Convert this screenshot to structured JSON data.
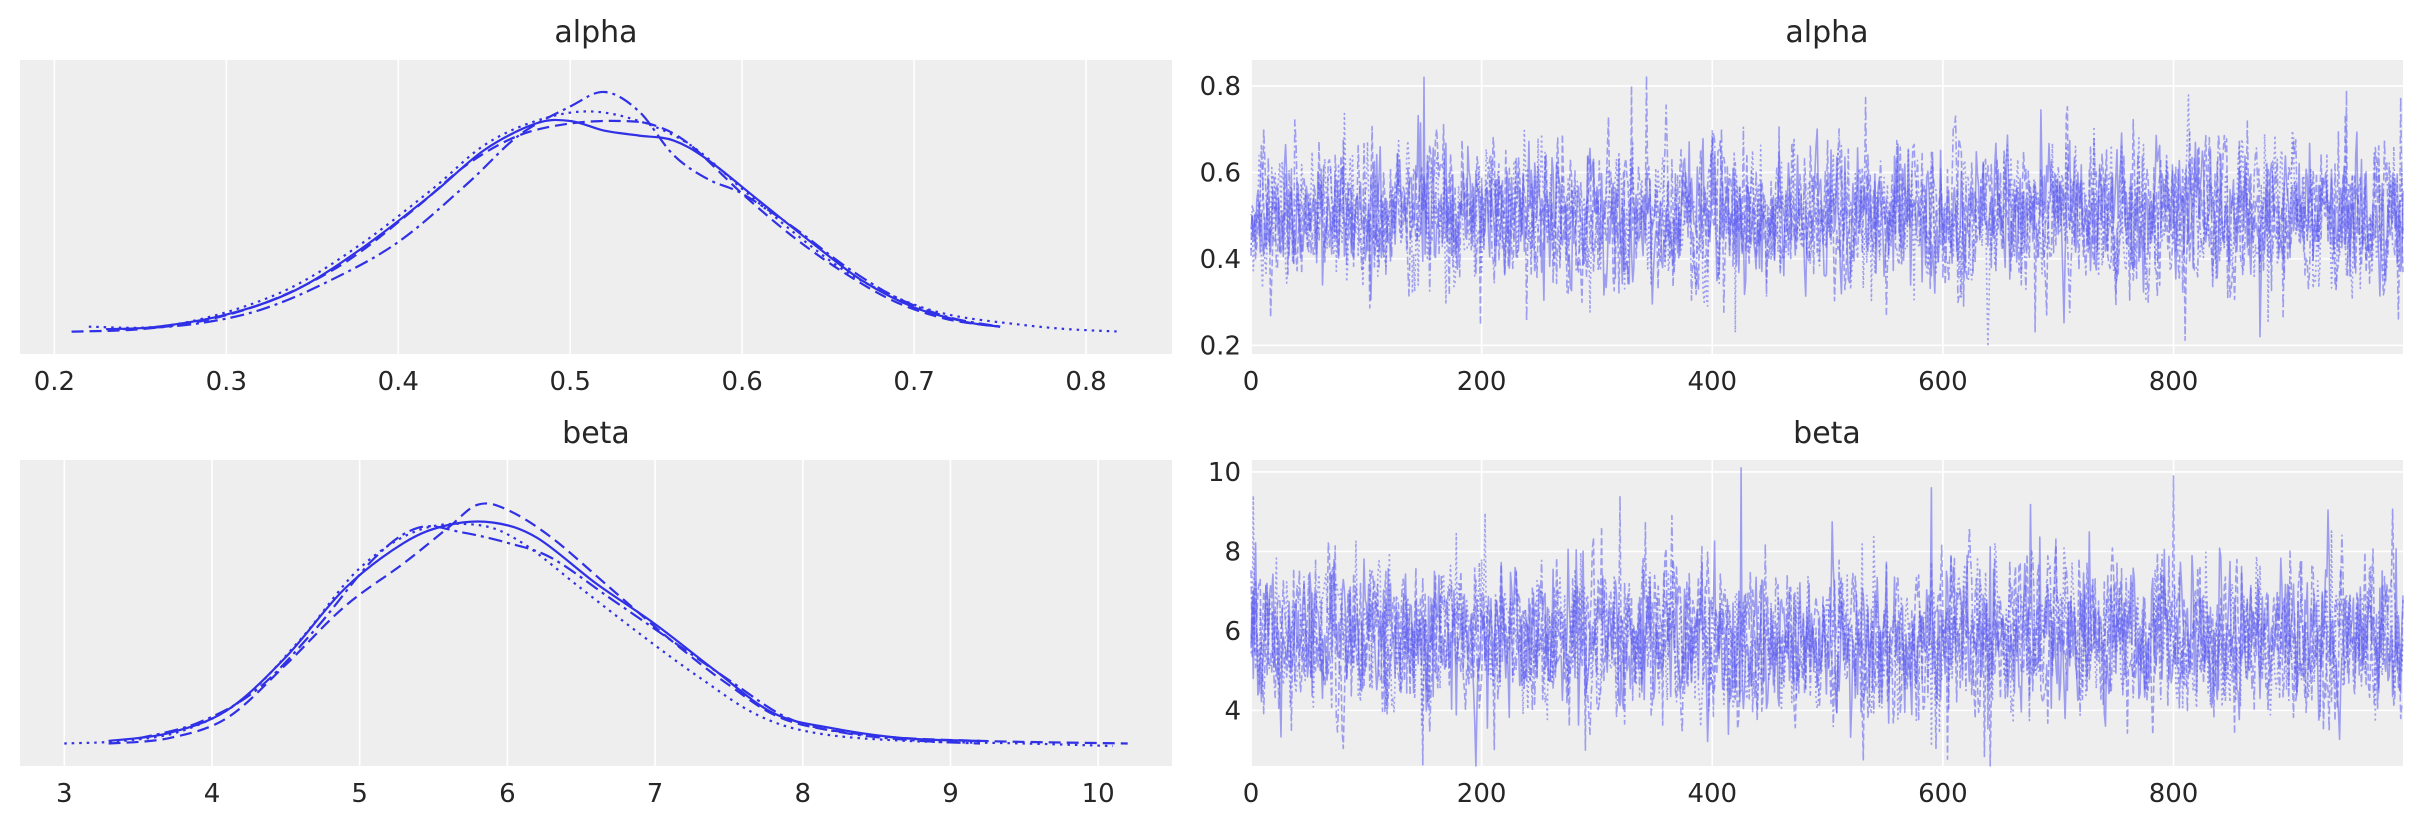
{
  "chart_data": [
    {
      "type": "line",
      "kind": "kde",
      "title": "alpha",
      "xlabel": "",
      "ylabel": "",
      "xlim": [
        0.18,
        0.85
      ],
      "xticks": [
        0.2,
        0.3,
        0.4,
        0.5,
        0.6,
        0.7,
        0.8
      ],
      "xtick_labels": [
        "0.2",
        "0.3",
        "0.4",
        "0.5",
        "0.6",
        "0.7",
        "0.8"
      ],
      "yticks_shown": false,
      "grid": true,
      "series": [
        {
          "linestyle": "solid",
          "x": [
            0.23,
            0.26,
            0.3,
            0.34,
            0.38,
            0.42,
            0.45,
            0.48,
            0.5,
            0.52,
            0.54,
            0.56,
            0.58,
            0.61,
            0.64,
            0.67,
            0.7,
            0.73,
            0.75
          ],
          "y": [
            0.02,
            0.03,
            0.08,
            0.18,
            0.36,
            0.58,
            0.76,
            0.87,
            0.88,
            0.84,
            0.82,
            0.8,
            0.72,
            0.55,
            0.38,
            0.22,
            0.11,
            0.05,
            0.03
          ]
        },
        {
          "linestyle": "dashed",
          "x": [
            0.21,
            0.25,
            0.29,
            0.33,
            0.37,
            0.41,
            0.44,
            0.47,
            0.5,
            0.53,
            0.55,
            0.57,
            0.6,
            0.63,
            0.66,
            0.69,
            0.72,
            0.75
          ],
          "y": [
            0.01,
            0.02,
            0.06,
            0.15,
            0.3,
            0.52,
            0.7,
            0.82,
            0.87,
            0.88,
            0.86,
            0.78,
            0.58,
            0.4,
            0.25,
            0.13,
            0.06,
            0.03
          ]
        },
        {
          "linestyle": "dotted",
          "x": [
            0.22,
            0.26,
            0.3,
            0.34,
            0.38,
            0.42,
            0.45,
            0.48,
            0.51,
            0.54,
            0.57,
            0.6,
            0.63,
            0.66,
            0.69,
            0.72,
            0.76,
            0.79,
            0.82
          ],
          "y": [
            0.03,
            0.03,
            0.09,
            0.2,
            0.38,
            0.6,
            0.78,
            0.88,
            0.92,
            0.88,
            0.78,
            0.6,
            0.42,
            0.26,
            0.15,
            0.08,
            0.04,
            0.02,
            0.01
          ]
        },
        {
          "linestyle": "dashdot",
          "x": [
            0.24,
            0.28,
            0.32,
            0.36,
            0.4,
            0.44,
            0.47,
            0.5,
            0.52,
            0.54,
            0.56,
            0.58,
            0.6,
            0.63,
            0.66,
            0.69,
            0.72,
            0.75
          ],
          "y": [
            0.02,
            0.04,
            0.1,
            0.22,
            0.38,
            0.62,
            0.82,
            0.94,
            1.0,
            0.92,
            0.74,
            0.64,
            0.58,
            0.44,
            0.28,
            0.15,
            0.07,
            0.03
          ]
        }
      ]
    },
    {
      "type": "line",
      "kind": "trace",
      "title": "alpha",
      "xlabel": "",
      "ylabel": "",
      "xlim": [
        0,
        999
      ],
      "ylim": [
        0.18,
        0.86
      ],
      "xticks": [
        0,
        200,
        400,
        600,
        800
      ],
      "xtick_labels": [
        "0",
        "200",
        "400",
        "600",
        "800"
      ],
      "yticks": [
        0.2,
        0.4,
        0.6,
        0.8
      ],
      "ytick_labels": [
        "0.2",
        "0.4",
        "0.6",
        "0.8"
      ],
      "grid": true,
      "n_draws": 1000,
      "n_chains": 4,
      "center": 0.5,
      "spread": 0.08,
      "notable_points": [
        [
          150,
          0.82
        ],
        [
          330,
          0.8
        ],
        [
          420,
          0.79
        ],
        [
          950,
          0.79
        ],
        [
          875,
          0.22
        ],
        [
          680,
          0.23
        ],
        [
          420,
          0.23
        ]
      ]
    },
    {
      "type": "line",
      "kind": "kde",
      "title": "beta",
      "xlabel": "",
      "ylabel": "",
      "xlim": [
        2.7,
        10.5
      ],
      "xticks": [
        3,
        4,
        5,
        6,
        7,
        8,
        9,
        10
      ],
      "xtick_labels": [
        "3",
        "4",
        "5",
        "6",
        "7",
        "8",
        "9",
        "10"
      ],
      "yticks_shown": false,
      "grid": true,
      "series": [
        {
          "linestyle": "solid",
          "x": [
            3.3,
            3.7,
            4.1,
            4.5,
            4.9,
            5.3,
            5.6,
            5.9,
            6.2,
            6.6,
            7.0,
            7.4,
            7.8,
            8.2,
            8.7,
            9.2
          ],
          "y": [
            0.02,
            0.05,
            0.14,
            0.35,
            0.62,
            0.8,
            0.87,
            0.88,
            0.82,
            0.64,
            0.48,
            0.3,
            0.13,
            0.07,
            0.03,
            0.02
          ]
        },
        {
          "linestyle": "dashed",
          "x": [
            3.3,
            3.7,
            4.1,
            4.5,
            4.9,
            5.3,
            5.6,
            5.8,
            6.0,
            6.3,
            6.7,
            7.1,
            7.5,
            7.9,
            8.5,
            9.2,
            10.2
          ],
          "y": [
            0.01,
            0.03,
            0.11,
            0.32,
            0.55,
            0.72,
            0.86,
            0.95,
            0.93,
            0.82,
            0.62,
            0.42,
            0.24,
            0.1,
            0.04,
            0.02,
            0.01
          ]
        },
        {
          "linestyle": "dotted",
          "x": [
            3.0,
            3.4,
            3.8,
            4.2,
            4.6,
            5.0,
            5.4,
            5.8,
            6.1,
            6.5,
            6.9,
            7.3,
            7.7,
            8.1,
            8.7,
            9.5,
            10.1
          ],
          "y": [
            0.01,
            0.02,
            0.06,
            0.18,
            0.42,
            0.7,
            0.85,
            0.87,
            0.8,
            0.62,
            0.44,
            0.27,
            0.12,
            0.05,
            0.02,
            0.01,
            0.0
          ]
        },
        {
          "linestyle": "dashdot",
          "x": [
            3.5,
            3.9,
            4.3,
            4.7,
            5.1,
            5.4,
            5.7,
            6.0,
            6.3,
            6.7,
            7.1,
            7.5,
            7.9,
            8.3,
            8.8,
            9.2
          ],
          "y": [
            0.03,
            0.09,
            0.22,
            0.46,
            0.74,
            0.86,
            0.84,
            0.8,
            0.74,
            0.58,
            0.42,
            0.26,
            0.11,
            0.05,
            0.02,
            0.01
          ]
        }
      ]
    },
    {
      "type": "line",
      "kind": "trace",
      "title": "beta",
      "xlabel": "",
      "ylabel": "",
      "xlim": [
        0,
        999
      ],
      "ylim": [
        2.6,
        10.3
      ],
      "xticks": [
        0,
        200,
        400,
        600,
        800
      ],
      "xtick_labels": [
        "0",
        "200",
        "400",
        "600",
        "800"
      ],
      "yticks": [
        4,
        6,
        8,
        10
      ],
      "ytick_labels": [
        "4",
        "6",
        "8",
        "10"
      ],
      "grid": true,
      "n_draws": 1000,
      "n_chains": 4,
      "center": 5.8,
      "spread": 0.95,
      "notable_points": [
        [
          425,
          10.1
        ],
        [
          800,
          9.9
        ],
        [
          2,
          9.4
        ],
        [
          320,
          9.4
        ],
        [
          590,
          9.6
        ],
        [
          290,
          3.0
        ],
        [
          590,
          3.1
        ],
        [
          35,
          3.5
        ]
      ]
    }
  ],
  "style": {
    "line_color": "#3030e6",
    "trace_color": "#5b5bf0",
    "panel_bg": "#eeeeee",
    "grid_color": "#ffffff",
    "text_color": "#262626"
  }
}
